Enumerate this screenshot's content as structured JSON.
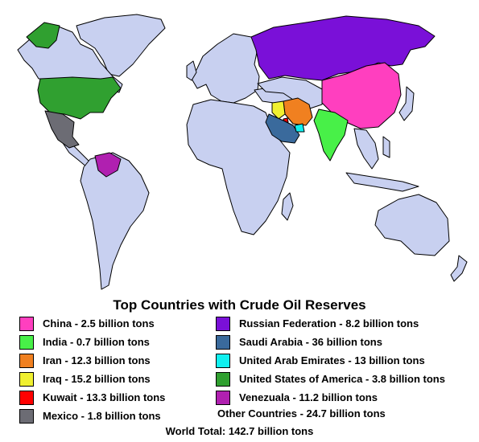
{
  "title": "Top Countries with Crude Oil Reserves",
  "map": {
    "land_color": "#c8d0f0",
    "highlighted": [
      {
        "country": "China",
        "color": "#ff3fbf"
      },
      {
        "country": "India",
        "color": "#48f048"
      },
      {
        "country": "Iran",
        "color": "#f08020"
      },
      {
        "country": "Iraq",
        "color": "#f0f030"
      },
      {
        "country": "Kuwait",
        "color": "#ff0000"
      },
      {
        "country": "Mexico",
        "color": "#6c6c74"
      },
      {
        "country": "Russian Federation",
        "color": "#7a10d8"
      },
      {
        "country": "Saudi Arabia",
        "color": "#3a6a9c"
      },
      {
        "country": "United Arab Emirates",
        "color": "#10f0f0"
      },
      {
        "country": "United States of America",
        "color": "#30a030"
      },
      {
        "country": "Venezuala",
        "color": "#b020b0"
      }
    ]
  },
  "legend": {
    "left": [
      {
        "label": "China - 2.5 billion tons",
        "color": "#ff3fbf"
      },
      {
        "label": "India - 0.7 billion tons",
        "color": "#48f048"
      },
      {
        "label": "Iran - 12.3 billion tons",
        "color": "#f08020"
      },
      {
        "label": "Iraq - 15.2 billion tons",
        "color": "#f0f030"
      },
      {
        "label": "Kuwait - 13.3 billion tons",
        "color": "#ff0000"
      },
      {
        "label": "Mexico - 1.8 billion tons",
        "color": "#6c6c74"
      }
    ],
    "right": [
      {
        "label": "Russian Federation - 8.2 billion tons",
        "color": "#7a10d8"
      },
      {
        "label": "Saudi Arabia - 36 billion tons",
        "color": "#3a6a9c"
      },
      {
        "label": "United Arab Emirates - 13 billion tons",
        "color": "#10f0f0"
      },
      {
        "label": "United States of America - 3.8 billion tons",
        "color": "#30a030"
      },
      {
        "label": "Venezuala - 11.2 billion tons",
        "color": "#b020b0"
      }
    ],
    "other": "Other Countries - 24.7 billion tons"
  },
  "total": "World Total: 142.7 billion tons"
}
